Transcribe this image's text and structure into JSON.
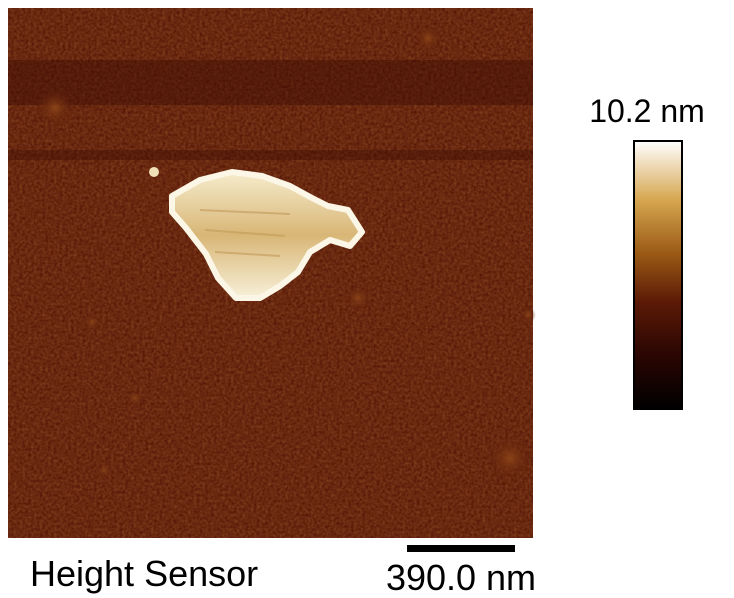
{
  "colorbar": {
    "max_label": "10.2 nm"
  },
  "caption": "Height Sensor",
  "scale_bar": {
    "label": "390.0 nm"
  }
}
